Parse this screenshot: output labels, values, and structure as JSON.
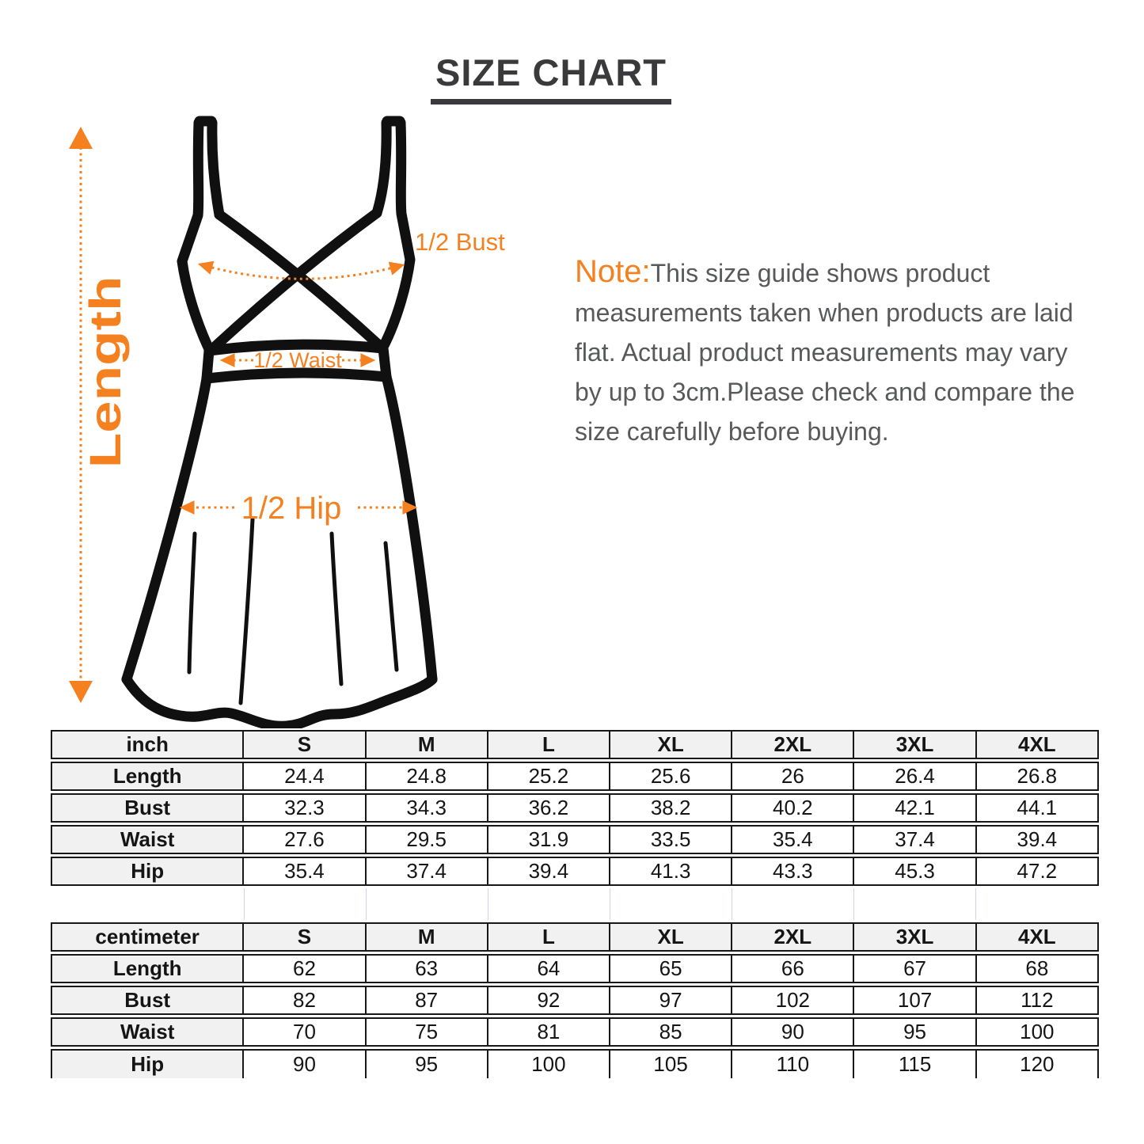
{
  "title": "SIZE CHART",
  "note": {
    "label": "Note:",
    "text": "This size guide shows product measurements taken when products are laid flat. Actual product measurements may vary by up to 3cm.Please check and compare the size carefully before buying."
  },
  "diagram": {
    "length_label": "Length",
    "bust_label": "1/2 Bust",
    "waist_label": "1/2 Waist",
    "hip_label": "1/2 Hip"
  },
  "colors": {
    "accent_orange": "#f5801f",
    "note_gray": "#58595b",
    "title_gray": "#3a3a3c",
    "table_border": "#181818",
    "table_header_bg": "#f1f1f1",
    "gap_gridline": "#ccd6e8"
  },
  "tables": [
    {
      "unit": "inch",
      "columns": [
        "S",
        "M",
        "L",
        "XL",
        "2XL",
        "3XL",
        "4XL"
      ],
      "rows": [
        {
          "label": "Length",
          "values": [
            "24.4",
            "24.8",
            "25.2",
            "25.6",
            "26",
            "26.4",
            "26.8"
          ]
        },
        {
          "label": "Bust",
          "values": [
            "32.3",
            "34.3",
            "36.2",
            "38.2",
            "40.2",
            "42.1",
            "44.1"
          ]
        },
        {
          "label": "Waist",
          "values": [
            "27.6",
            "29.5",
            "31.9",
            "33.5",
            "35.4",
            "37.4",
            "39.4"
          ]
        },
        {
          "label": "Hip",
          "values": [
            "35.4",
            "37.4",
            "39.4",
            "41.3",
            "43.3",
            "45.3",
            "47.2"
          ]
        }
      ]
    },
    {
      "unit": "centimeter",
      "columns": [
        "S",
        "M",
        "L",
        "XL",
        "2XL",
        "3XL",
        "4XL"
      ],
      "rows": [
        {
          "label": "Length",
          "values": [
            "62",
            "63",
            "64",
            "65",
            "66",
            "67",
            "68"
          ]
        },
        {
          "label": "Bust",
          "values": [
            "82",
            "87",
            "92",
            "97",
            "102",
            "107",
            "112"
          ]
        },
        {
          "label": "Waist",
          "values": [
            "70",
            "75",
            "81",
            "85",
            "90",
            "95",
            "100"
          ]
        },
        {
          "label": "Hip",
          "values": [
            "90",
            "95",
            "100",
            "105",
            "110",
            "115",
            "120"
          ]
        }
      ]
    }
  ]
}
